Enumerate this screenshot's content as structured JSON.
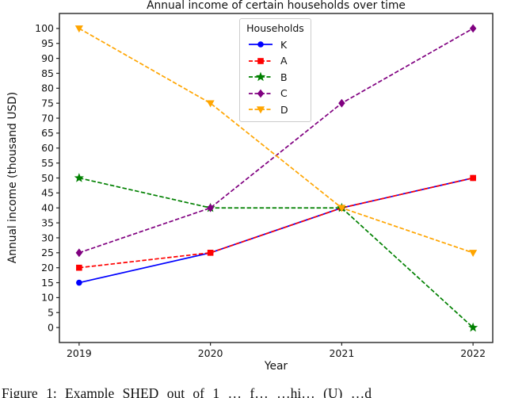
{
  "title": "Annual income of certain households over time",
  "caption": "Figure 1: Example SHED out of 1 … f… …hi… (U) …d",
  "accent_colors": {
    "frame": "#262626",
    "text": "#111111",
    "legend_border": "#cccccc"
  },
  "chart_data": {
    "type": "line",
    "title": "Annual income of certain households over time",
    "xlabel": "Year",
    "ylabel": "Annual income (thousand USD)",
    "legend_title": "Households",
    "legend_position": "upper center",
    "grid": false,
    "x": [
      2019,
      2020,
      2021,
      2022
    ],
    "x_tick_labels": [
      "2019",
      "2020",
      "2021",
      "2022"
    ],
    "y_ticks": [
      0,
      5,
      10,
      15,
      20,
      25,
      30,
      35,
      40,
      45,
      50,
      55,
      60,
      65,
      70,
      75,
      80,
      85,
      90,
      95,
      100
    ],
    "ylim": [
      -5,
      105
    ],
    "series": [
      {
        "name": "K",
        "color": "#0000ff",
        "linestyle": "solid",
        "marker": "circle",
        "values": [
          15,
          25,
          40,
          50
        ]
      },
      {
        "name": "A",
        "color": "#ff0000",
        "linestyle": "dashed",
        "marker": "square",
        "values": [
          20,
          25,
          40,
          50
        ]
      },
      {
        "name": "B",
        "color": "#008000",
        "linestyle": "dashed",
        "marker": "star",
        "values": [
          50,
          40,
          40,
          0
        ]
      },
      {
        "name": "C",
        "color": "#800080",
        "linestyle": "dashed",
        "marker": "diamond",
        "values": [
          25,
          40,
          75,
          100
        ]
      },
      {
        "name": "D",
        "color": "#ffa500",
        "linestyle": "dashed",
        "marker": "triangle-down",
        "values": [
          100,
          75,
          40,
          25
        ]
      }
    ]
  }
}
